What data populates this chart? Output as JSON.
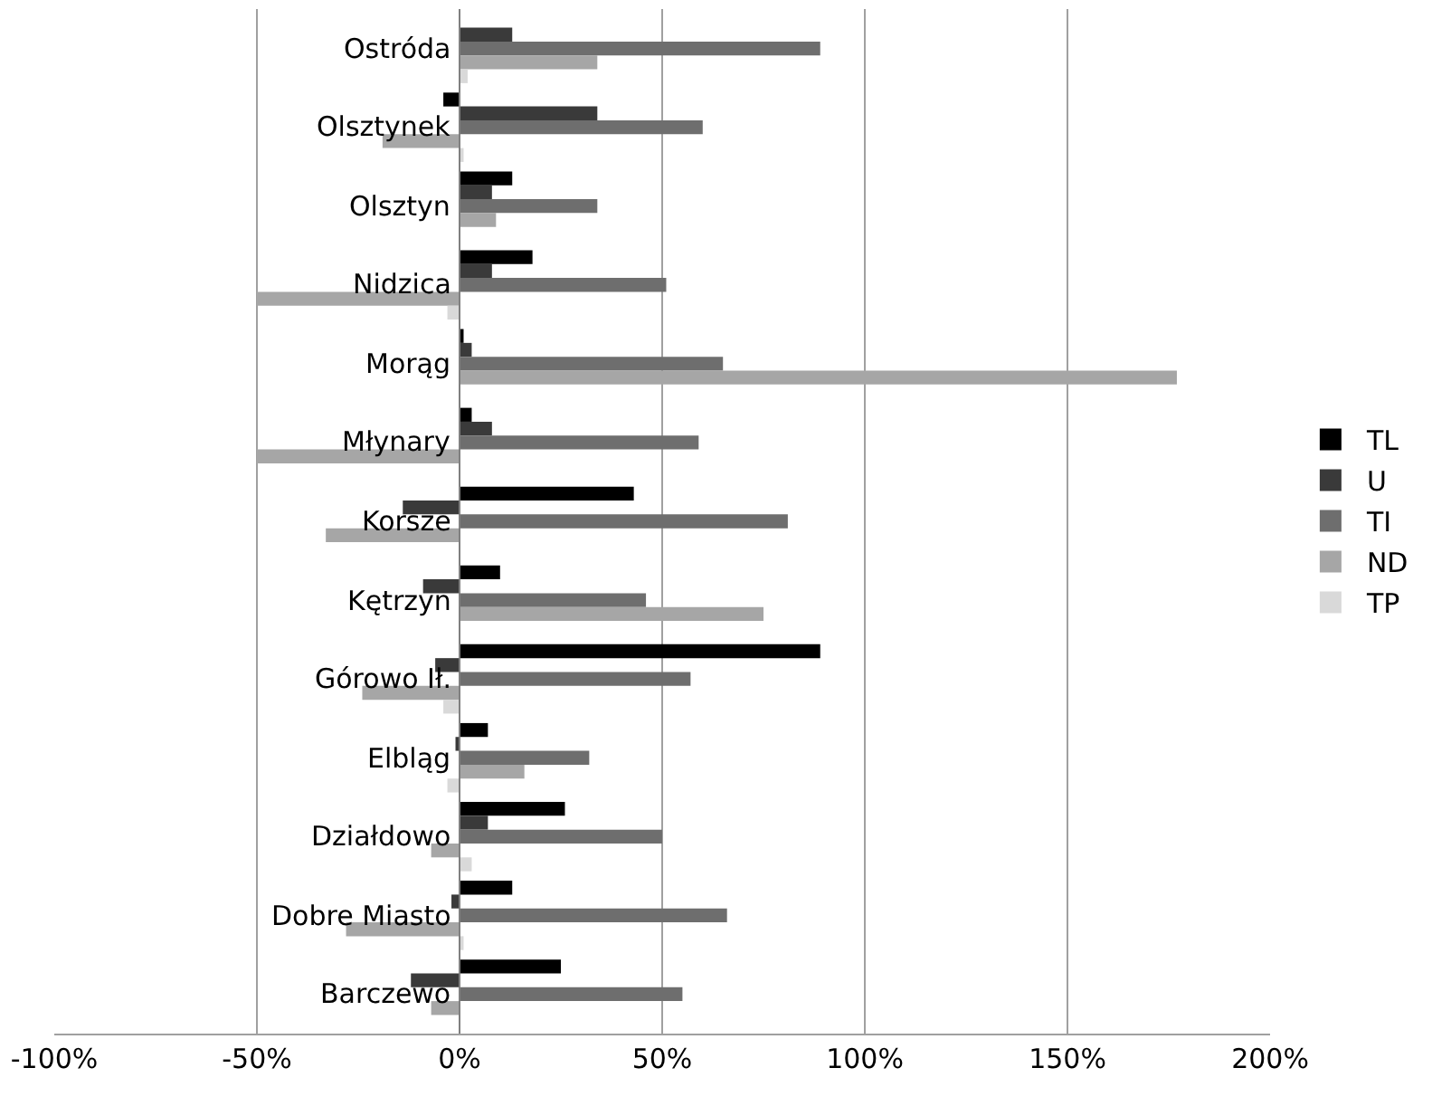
{
  "chart_data": {
    "type": "bar",
    "orientation": "horizontal",
    "categories": [
      "Ostróda",
      "Olsztynek",
      "Olsztyn",
      "Nidzica",
      "Morąg",
      "Młynary",
      "Korsze",
      "Kętrzyn",
      "Górowo Ił.",
      "Elbląg",
      "Działdowo",
      "Dobre Miasto",
      "Barczewo"
    ],
    "series": [
      {
        "name": "TL",
        "color": "#000000",
        "values": [
          null,
          -4,
          13,
          18,
          1,
          3,
          43,
          10,
          89,
          7,
          26,
          13,
          25
        ]
      },
      {
        "name": "U",
        "color": "#3a3a3a",
        "values": [
          13,
          34,
          8,
          8,
          3,
          8,
          -14,
          -9,
          -6,
          -1,
          7,
          -2,
          -12
        ]
      },
      {
        "name": "TI",
        "color": "#6e6e6e",
        "values": [
          89,
          60,
          34,
          51,
          65,
          59,
          81,
          46,
          57,
          32,
          50,
          66,
          55
        ]
      },
      {
        "name": "ND",
        "color": "#a6a6a6",
        "values": [
          34,
          -19,
          9,
          -50,
          177,
          -50,
          -33,
          75,
          -24,
          16,
          -7,
          -28,
          -7
        ]
      },
      {
        "name": "TP",
        "color": "#d9d9d9",
        "values": [
          2,
          1,
          0,
          -3,
          0,
          0,
          0,
          0,
          -4,
          -3,
          3,
          1,
          0
        ]
      }
    ],
    "xlim": [
      -100,
      200
    ],
    "xticks": [
      {
        "value": -100,
        "label": "-100%"
      },
      {
        "value": -50,
        "label": "-50%"
      },
      {
        "value": 0,
        "label": "0%"
      },
      {
        "value": 50,
        "label": "50%"
      },
      {
        "value": 100,
        "label": "100%"
      },
      {
        "value": 150,
        "label": "150%"
      },
      {
        "value": 200,
        "label": "200%"
      }
    ],
    "grid": "x",
    "legend": "right"
  }
}
